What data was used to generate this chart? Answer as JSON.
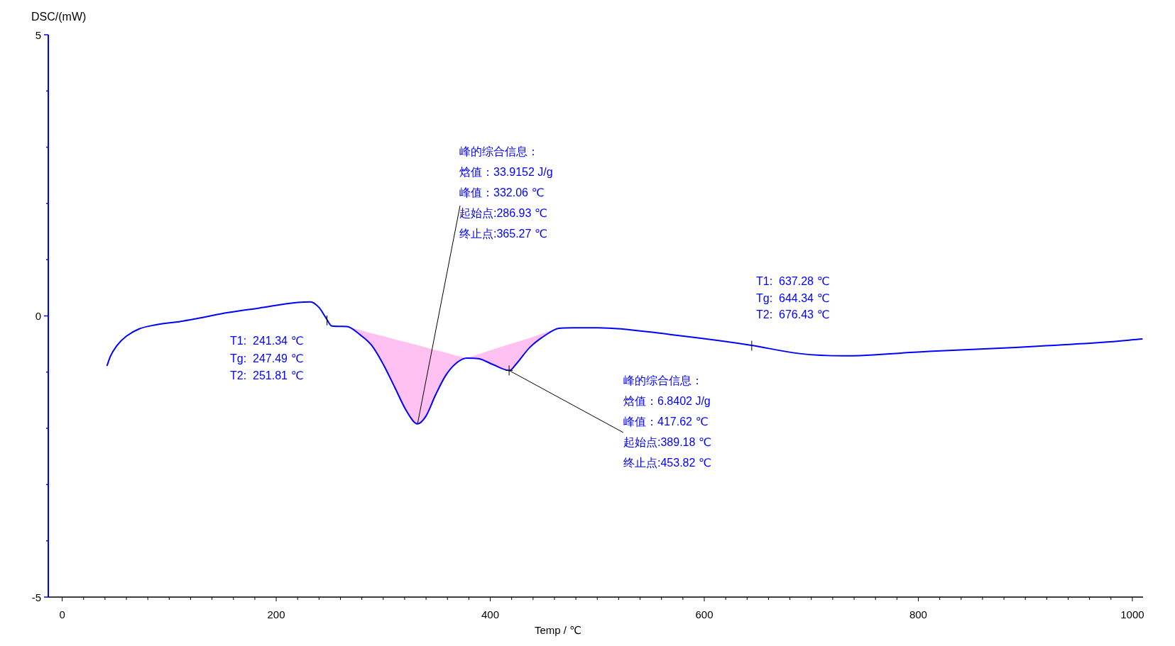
{
  "chart_data": {
    "type": "line",
    "xlabel": "Temp / ℃",
    "ylabel": "DSC/(mW)",
    "xlim": [
      -13,
      1010
    ],
    "xticks": [
      0,
      {
        "value": 20,
        "label": null
      },
      {
        "value": 40,
        "label": null
      },
      {
        "value": 60,
        "label": null
      },
      {
        "value": 80,
        "label": null
      },
      {
        "value": 100,
        "label": null
      },
      {
        "value": 120,
        "label": null
      },
      {
        "value": 140,
        "label": null
      },
      {
        "value": 160,
        "label": null
      },
      {
        "value": 180,
        "label": null
      },
      200,
      {
        "value": 220,
        "label": null
      },
      {
        "value": 240,
        "label": null
      },
      {
        "value": 260,
        "label": null
      },
      {
        "value": 280,
        "label": null
      },
      {
        "value": 300,
        "label": null
      },
      {
        "value": 320,
        "label": null
      },
      {
        "value": 340,
        "label": null
      },
      {
        "value": 360,
        "label": null
      },
      {
        "value": 380,
        "label": null
      },
      400,
      {
        "value": 420,
        "label": null
      },
      {
        "value": 440,
        "label": null
      },
      {
        "value": 460,
        "label": null
      },
      {
        "value": 480,
        "label": null
      },
      {
        "value": 500,
        "label": null
      },
      {
        "value": 520,
        "label": null
      },
      {
        "value": 540,
        "label": null
      },
      {
        "value": 560,
        "label": null
      },
      {
        "value": 580,
        "label": null
      },
      600,
      {
        "value": 620,
        "label": null
      },
      {
        "value": 640,
        "label": null
      },
      {
        "value": 660,
        "label": null
      },
      {
        "value": 680,
        "label": null
      },
      {
        "value": 700,
        "label": null
      },
      {
        "value": 720,
        "label": null
      },
      {
        "value": 740,
        "label": null
      },
      {
        "value": 760,
        "label": null
      },
      {
        "value": 780,
        "label": null
      },
      800,
      {
        "value": 820,
        "label": null
      },
      {
        "value": 840,
        "label": null
      },
      {
        "value": 860,
        "label": null
      },
      {
        "value": 880,
        "label": null
      },
      {
        "value": 900,
        "label": null
      },
      {
        "value": 920,
        "label": null
      },
      {
        "value": 940,
        "label": null
      },
      {
        "value": 960,
        "label": null
      },
      {
        "value": 980,
        "label": null
      },
      1000
    ],
    "ylim": [
      -5,
      5
    ],
    "yticks": [
      -5,
      {
        "value": -4,
        "label": null
      },
      {
        "value": -3,
        "label": null
      },
      {
        "value": -2,
        "label": null
      },
      {
        "value": -1,
        "label": null
      },
      0,
      {
        "value": 1,
        "label": null
      },
      {
        "value": 2,
        "label": null
      },
      {
        "value": 3,
        "label": null
      },
      {
        "value": 4,
        "label": null
      },
      5
    ],
    "series": [
      {
        "color": "#0000ff",
        "x": [
          42,
          45,
          51,
          60,
          72,
          87,
          110,
          125,
          155,
          184,
          220,
          232,
          240,
          246,
          252,
          266,
          278,
          289,
          300,
          311,
          322,
          332,
          340,
          349,
          358,
          367,
          378,
          389,
          402,
          418,
          424,
          437,
          451,
          464,
          477,
          501,
          568,
          643,
          689,
          730,
          810,
          891,
          972,
          1009
        ],
        "values": [
          -0.88,
          -0.72,
          -0.53,
          -0.36,
          -0.23,
          -0.16,
          -0.1,
          -0.05,
          0.06,
          0.14,
          0.24,
          0.25,
          0.15,
          -0.02,
          -0.18,
          -0.19,
          -0.33,
          -0.52,
          -0.86,
          -1.28,
          -1.7,
          -1.92,
          -1.78,
          -1.4,
          -1.07,
          -0.86,
          -0.75,
          -0.76,
          -0.86,
          -0.97,
          -0.86,
          -0.56,
          -0.35,
          -0.22,
          -0.21,
          -0.21,
          -0.33,
          -0.52,
          -0.67,
          -0.71,
          -0.63,
          -0.56,
          -0.47,
          -0.41
        ],
        "lower": [
          null,
          null,
          null,
          null,
          null,
          null,
          null,
          null,
          null,
          null,
          null,
          null,
          null,
          null,
          null,
          -0.19,
          -0.33,
          -0.52,
          -0.86,
          -1.28,
          -1.7,
          -1.92,
          -1.78,
          -1.4,
          -1.07,
          -0.86,
          -0.75,
          -0.76,
          -0.86,
          -0.97,
          -0.86,
          -0.56,
          -0.35,
          -0.22,
          null,
          null,
          null,
          null,
          null,
          null,
          null,
          null,
          null,
          null
        ],
        "upper": [
          null,
          null,
          null,
          null,
          null,
          null,
          null,
          null,
          null,
          null,
          null,
          null,
          null,
          null,
          null,
          -0.19,
          -0.25,
          -0.31,
          -0.36,
          -0.42,
          -0.47,
          -0.52,
          -0.56,
          -0.61,
          -0.65,
          -0.7,
          -0.75,
          -0.68,
          -0.6,
          -0.5,
          -0.47,
          -0.39,
          -0.3,
          -0.22,
          null,
          null,
          null,
          null,
          null,
          null,
          null,
          null,
          null,
          null
        ]
      }
    ],
    "annotations": [
      "峰的综合信息：",
      "焓值：33.9152 J/g",
      "峰值：332.06 ℃",
      {
        "text": "起始点:286.93 ℃",
        "x": 332.06,
        "y": -1.92
      },
      "终止点:365.27 ℃",
      {
        "text": "T1:  637.28 ℃\nTg:  644.34 ℃\nT2:  676.43 ℃",
        "x": 644.34,
        "y": -0.53
      },
      {
        "text": "T1:  241.34 ℃\nTg:  247.49 ℃\nT2:  251.81 ℃",
        "x": 247.49,
        "y": -0.08
      },
      "峰的综合信息：",
      "焓值：6.8402 J/g",
      "峰值：417.62 ℃",
      {
        "text": "起始点:389.18 ℃",
        "x": 417.62,
        "y": -0.97
      },
      "终止点:453.82 ℃"
    ]
  }
}
